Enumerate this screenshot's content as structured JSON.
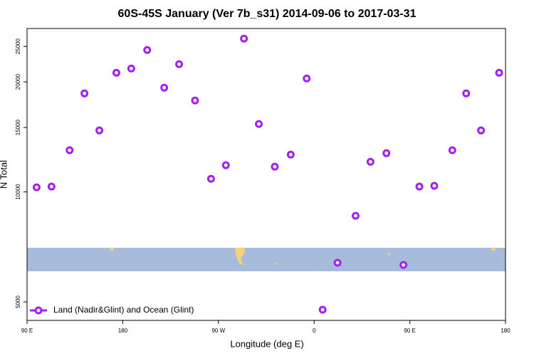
{
  "chart_data": {
    "type": "scatter",
    "title": "60S-45S January (Ver 7b_s31)   2014-09-06 to 2017-03-31",
    "x_label": "Longitude (deg E)",
    "y_label": "N Total",
    "series": [
      {
        "name": "Land (Nadir&Glint) and Ocean (Glint)",
        "color": "#a020f0",
        "x": [
          99,
          113,
          130,
          144,
          158,
          174,
          188,
          203,
          219,
          233,
          248,
          263,
          277,
          294,
          308,
          323,
          338,
          353,
          368,
          382,
          399,
          413,
          428,
          444,
          459,
          473,
          490,
          503,
          517,
          534
        ],
        "values": [
          10290,
          10340,
          13000,
          18600,
          14730,
          21180,
          21760,
          24450,
          19280,
          22360,
          17790,
          10860,
          11830,
          26270,
          15340,
          11720,
          12650,
          20430,
          4760,
          6400,
          8600,
          12090,
          12760,
          6310,
          10340,
          10390,
          13000,
          18600,
          14730,
          21180
        ]
      }
    ],
    "xlim": [
      90,
      540
    ],
    "xticks": [
      {
        "value": 90,
        "label": "90 E"
      },
      180,
      {
        "value": 270,
        "label": "90 W"
      },
      {
        "value": 360,
        "label": "0"
      },
      {
        "value": 450,
        "label": "90 E"
      },
      {
        "value": 540,
        "label": "180"
      }
    ],
    "ylim": [
      4450,
      28000
    ],
    "yticks": [
      5000,
      10000,
      15000,
      20000,
      25000
    ],
    "y_log": true,
    "legend": "lower left"
  }
}
